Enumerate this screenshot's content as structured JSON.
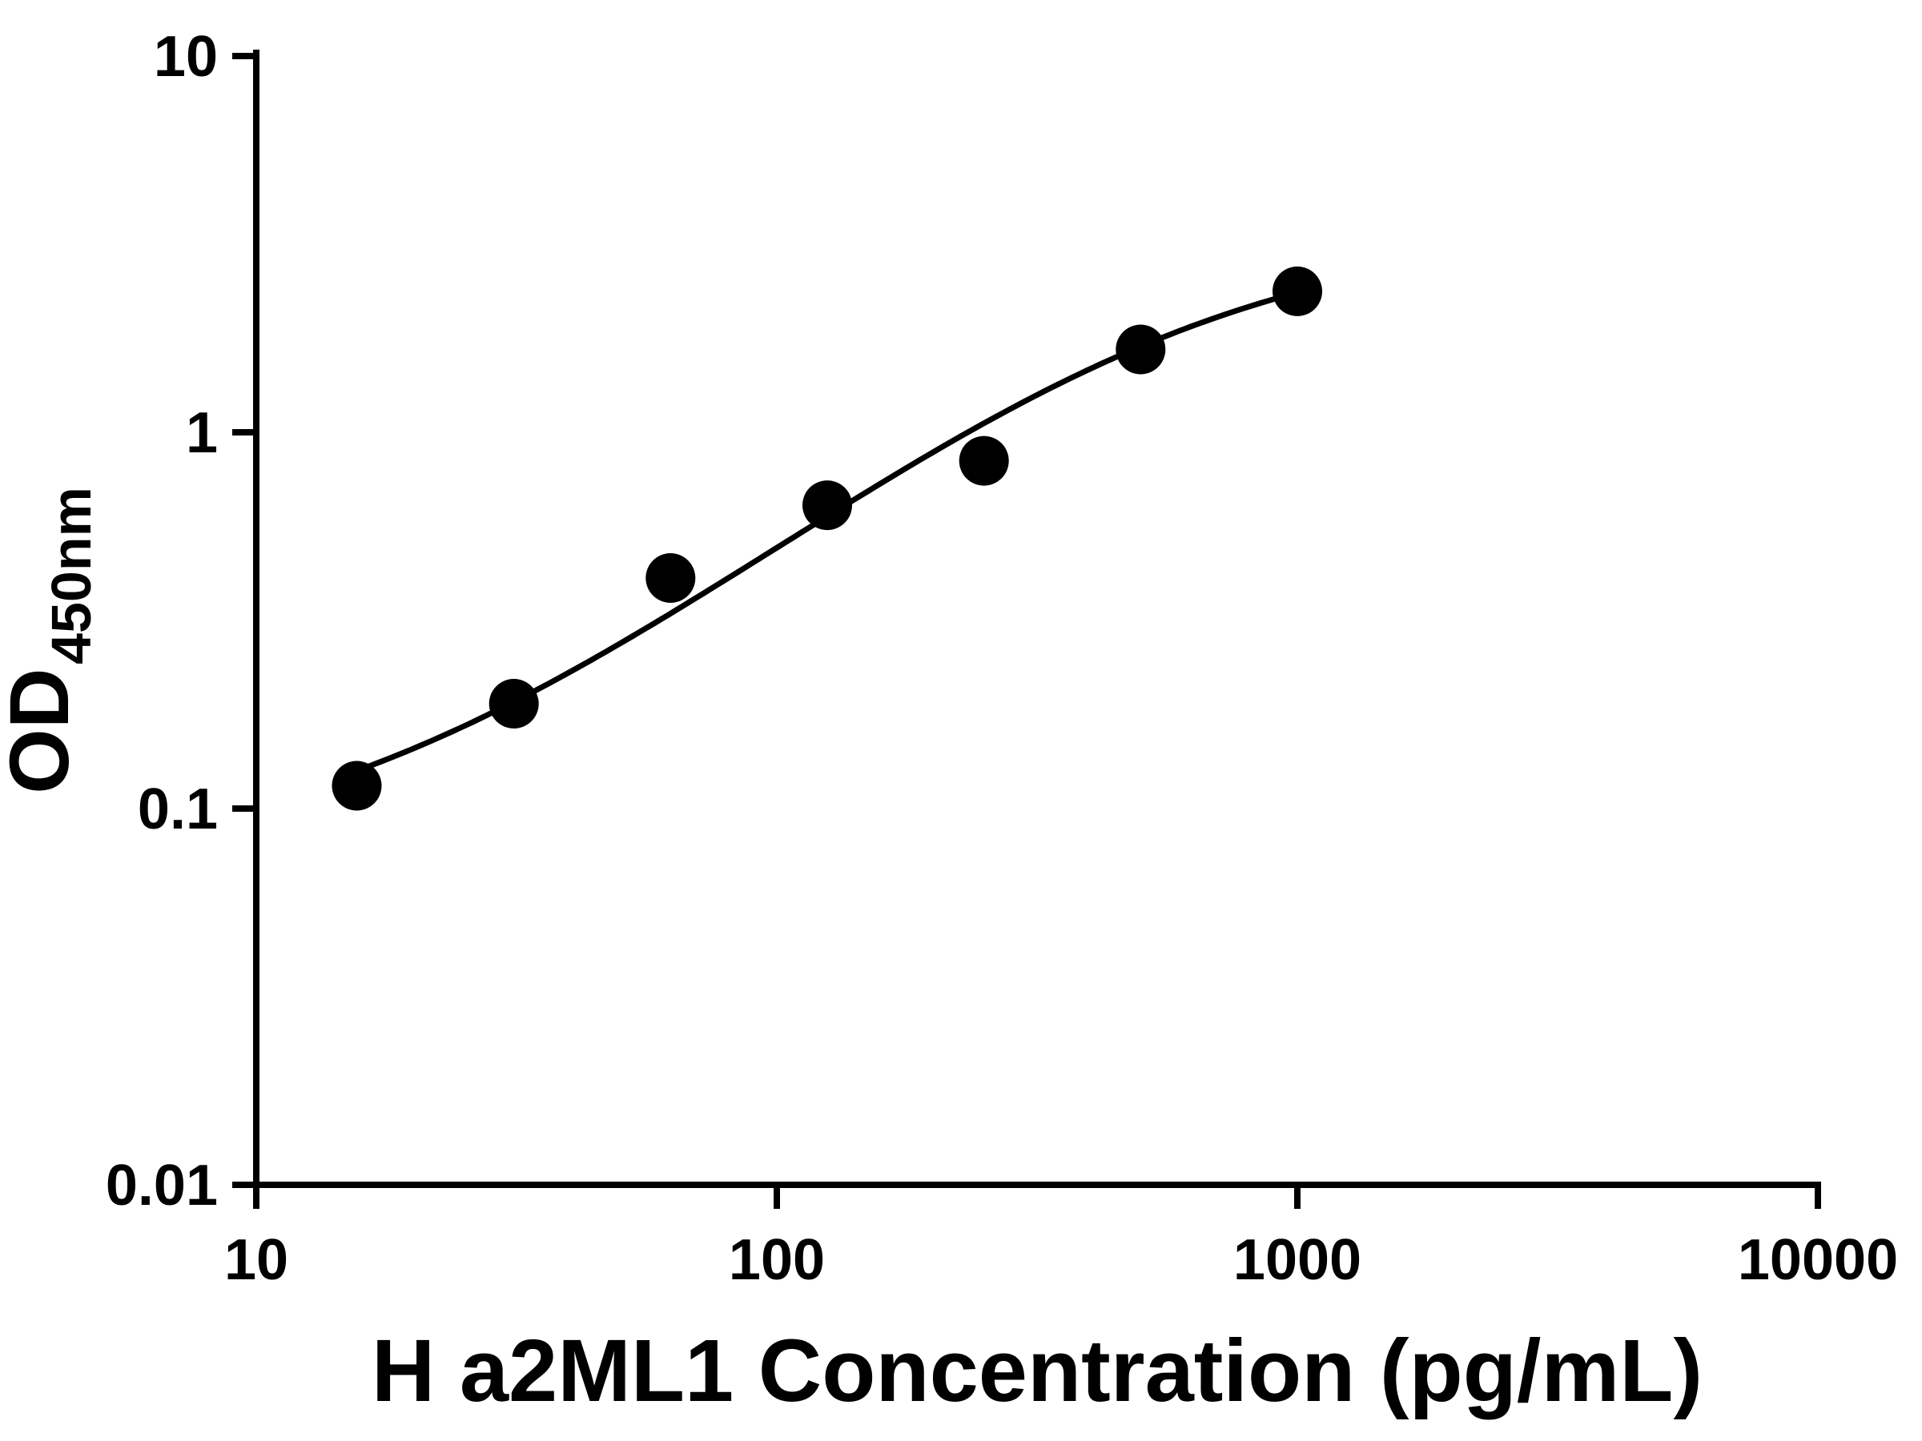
{
  "chart_data": {
    "type": "scatter",
    "title": "",
    "xlabel": "H a2ML1 Concentration (pg/mL)",
    "ylabel_main": "OD",
    "ylabel_sub": "450nm",
    "x_scale": "log",
    "y_scale": "log",
    "xlim": [
      10,
      10000
    ],
    "ylim": [
      0.01,
      10
    ],
    "x_ticks": [
      10,
      100,
      1000,
      10000
    ],
    "x_tick_labels": [
      "10",
      "100",
      "1000",
      "10000"
    ],
    "y_ticks": [
      0.01,
      0.1,
      1,
      10
    ],
    "y_tick_labels": [
      "0.01",
      "0.1",
      "1",
      "10"
    ],
    "grid": false,
    "legend": "none",
    "background": "#ffffff",
    "axis_color": "#000000",
    "series": [
      {
        "marker": "circle",
        "color": "#000000",
        "x": [
          15.6,
          31.25,
          62.5,
          125,
          250,
          500,
          1000
        ],
        "y": [
          0.115,
          0.19,
          0.41,
          0.64,
          0.84,
          1.66,
          2.37
        ]
      }
    ],
    "fit_curve": {
      "type": "4PL",
      "a": 0.07,
      "b": 1.15,
      "c": 550,
      "d": 3.5,
      "x_start": 14.5,
      "x_end": 1090,
      "color": "#000000"
    }
  }
}
